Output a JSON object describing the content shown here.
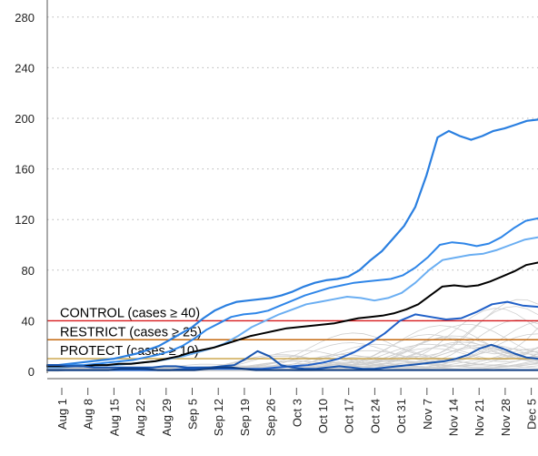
{
  "chart_data": {
    "type": "line",
    "title": "",
    "xlabel": "",
    "ylabel": "",
    "ylim": [
      0,
      290
    ],
    "yticks": [
      0,
      40,
      80,
      120,
      160,
      200,
      240,
      280
    ],
    "grid": "horizontal dotted",
    "x_tick_labels": [
      "Aug 1",
      "Aug 8",
      "Aug 15",
      "Aug 22",
      "Aug 29",
      "Sep 5",
      "Sep 12",
      "Sep 19",
      "Sep 26",
      "Oct 3",
      "Oct 10",
      "Oct 17",
      "Oct 24",
      "Oct 31",
      "Nov 7",
      "Nov 14",
      "Nov 21",
      "Nov 28",
      "Dec 5"
    ],
    "thresholds": [
      {
        "label": "CONTROL (cases ≥ 40)",
        "value": 40,
        "color": "#d7191c"
      },
      {
        "label": "RESTRICT (cases ≥ 25)",
        "value": 25,
        "color": "#c46a10"
      },
      {
        "label": "PROTECT (cases ≥ 10)",
        "value": 10,
        "color": "#c8a040"
      }
    ],
    "highlighted_series": [
      {
        "color": "#2a7fe0",
        "width": 2.2,
        "values": [
          5,
          5,
          6,
          7,
          8,
          9,
          10,
          12,
          14,
          17,
          20,
          25,
          30,
          35,
          42,
          48,
          52,
          55,
          56,
          57,
          58,
          60,
          63,
          67,
          70,
          72,
          73,
          75,
          80,
          88,
          95,
          105,
          115,
          130,
          155,
          185,
          190,
          186,
          183,
          186,
          190,
          192,
          195,
          198,
          199
        ]
      },
      {
        "color": "#2f86e8",
        "width": 2,
        "values": [
          4,
          4,
          5,
          5,
          6,
          7,
          8,
          9,
          11,
          13,
          16,
          20,
          26,
          33,
          38,
          43,
          45,
          46,
          48,
          52,
          56,
          60,
          63,
          66,
          68,
          70,
          71,
          72,
          73,
          76,
          82,
          90,
          100,
          102,
          101,
          99,
          101,
          106,
          113,
          119,
          121
        ]
      },
      {
        "color": "#6aaef2",
        "width": 2,
        "values": [
          3,
          3,
          4,
          4,
          5,
          5,
          6,
          7,
          8,
          10,
          12,
          15,
          18,
          22,
          28,
          35,
          40,
          45,
          49,
          53,
          55,
          57,
          59,
          58,
          56,
          58,
          62,
          70,
          80,
          88,
          90,
          92,
          93,
          96,
          100,
          104,
          106
        ]
      },
      {
        "color": "#000000",
        "width": 2,
        "values": [
          4,
          4,
          4,
          4,
          5,
          5,
          6,
          6,
          7,
          8,
          10,
          12,
          15,
          17,
          19,
          22,
          25,
          28,
          30,
          32,
          34,
          35,
          36,
          37,
          38,
          40,
          42,
          43,
          44,
          46,
          49,
          53,
          60,
          67,
          68,
          67,
          68,
          71,
          75,
          79,
          84,
          86
        ]
      },
      {
        "color": "#2060c8",
        "width": 2,
        "values": [
          1,
          1,
          1,
          1,
          1,
          1,
          1,
          1,
          1,
          2,
          2,
          2,
          2,
          2,
          2,
          3,
          4,
          5,
          7,
          10,
          15,
          22,
          30,
          40,
          45,
          43,
          41,
          42,
          47,
          53,
          55,
          52,
          51
        ]
      },
      {
        "color": "#1a56b0",
        "width": 2,
        "values": [
          5,
          5,
          4,
          4,
          3,
          3,
          3,
          3,
          3,
          3,
          4,
          4,
          3,
          3,
          3,
          4,
          5,
          10,
          16,
          12,
          5,
          3,
          2,
          2,
          3,
          4,
          3,
          2,
          2,
          3,
          4,
          5,
          6,
          7,
          8,
          10,
          13,
          18,
          21,
          18,
          14,
          11,
          10
        ]
      },
      {
        "color": "#0d3b80",
        "width": 2,
        "values": [
          1,
          1,
          1,
          1,
          1,
          1,
          2,
          2,
          2,
          1,
          1,
          1,
          1,
          2,
          3,
          3,
          2,
          1,
          1,
          1,
          1,
          1,
          1,
          1,
          1,
          1,
          1,
          1,
          1,
          1,
          1,
          1,
          1,
          1,
          1,
          1,
          1,
          1,
          1,
          1,
          1
        ]
      }
    ],
    "background_series_note": "approximately 30 grey background lines, values mostly between 0 and 90"
  }
}
